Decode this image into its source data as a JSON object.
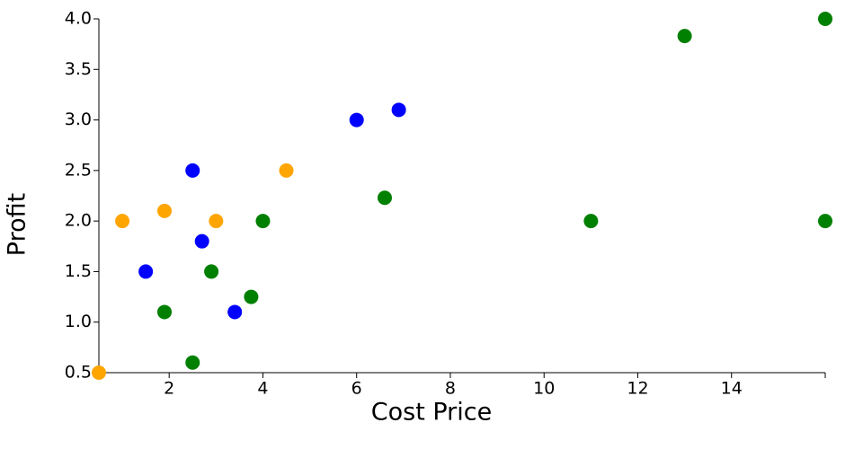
{
  "chart_data": {
    "type": "scatter",
    "x_label": "Cost Price",
    "y_label": "Profit",
    "x_label_color": "#800080",
    "y_label_color": "#ff0000",
    "xlim": [
      0.5,
      16
    ],
    "xticks": [
      2,
      4,
      6,
      8,
      10,
      12,
      14
    ],
    "ylim": [
      0.5,
      4.0
    ],
    "yticks": [
      0.5,
      {
        "value": 1,
        "label": "1.0"
      },
      1.5,
      {
        "value": 2,
        "label": "2.0"
      },
      2.5,
      {
        "value": 3,
        "label": "3.0"
      },
      3.5,
      {
        "value": 4,
        "label": "4.0"
      }
    ],
    "grid": false,
    "series": [
      {
        "color": "#008000",
        "x": [
          1.9,
          2.5,
          2.9,
          3.75,
          4,
          6.6,
          11,
          13,
          16,
          16
        ],
        "values": [
          1.1,
          0.6,
          1.5,
          1.25,
          2,
          2.23,
          2,
          3.83,
          4,
          2
        ]
      },
      {
        "color": "#0000ff",
        "x": [
          1.5,
          2.5,
          2.7,
          3.4,
          6,
          6.9
        ],
        "values": [
          1.5,
          2.5,
          1.8,
          1.1,
          3,
          3.1
        ]
      },
      {
        "color": "#ffa500",
        "x": [
          0.5,
          1,
          1.9,
          3,
          4.5
        ],
        "values": [
          0.5,
          2,
          2.1,
          2,
          2.5
        ]
      }
    ]
  }
}
